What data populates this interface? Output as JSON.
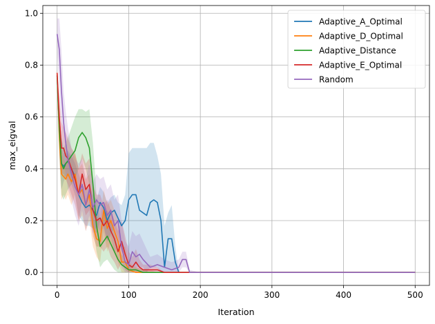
{
  "chart_data": {
    "type": "line",
    "title": "",
    "xlabel": "Iteration",
    "ylabel": "max_eigval",
    "xlim": [
      -20,
      520
    ],
    "ylim": [
      -0.05,
      1.03
    ],
    "xticks": [
      0,
      100,
      200,
      300,
      400,
      500
    ],
    "xtick_labels": [
      "0",
      "100",
      "200",
      "300",
      "400",
      "500"
    ],
    "yticks": [
      0.0,
      0.2,
      0.4,
      0.6,
      0.8,
      1.0
    ],
    "ytick_labels": [
      "0.0",
      "0.2",
      "0.4",
      "0.6",
      "0.8",
      "1.0"
    ],
    "grid": true,
    "legend_position": "top-right",
    "series": [
      {
        "name": "Adaptive_A_Optimal",
        "color": "#1f77b4",
        "x": [
          0,
          3,
          6,
          9,
          12,
          15,
          20,
          25,
          30,
          35,
          40,
          45,
          50,
          55,
          60,
          65,
          70,
          75,
          80,
          85,
          90,
          95,
          100,
          105,
          110,
          115,
          120,
          125,
          130,
          135,
          140,
          145,
          150,
          155,
          160,
          165,
          170,
          180,
          190,
          200,
          250,
          300,
          350,
          400,
          450,
          500
        ],
        "values": [
          0.76,
          0.55,
          0.42,
          0.41,
          0.42,
          0.43,
          0.4,
          0.37,
          0.3,
          0.27,
          0.25,
          0.26,
          0.24,
          0.22,
          0.27,
          0.25,
          0.2,
          0.23,
          0.24,
          0.21,
          0.18,
          0.2,
          0.28,
          0.3,
          0.3,
          0.24,
          0.23,
          0.22,
          0.27,
          0.28,
          0.27,
          0.2,
          0.02,
          0.13,
          0.13,
          0.04,
          0.0,
          0.0,
          0.0,
          0.0,
          0.0,
          0.0,
          0.0,
          0.0,
          0.0,
          0.0
        ],
        "upper": [
          0.77,
          0.62,
          0.52,
          0.46,
          0.46,
          0.47,
          0.45,
          0.42,
          0.38,
          0.34,
          0.32,
          0.33,
          0.3,
          0.28,
          0.33,
          0.31,
          0.27,
          0.29,
          0.3,
          0.27,
          0.26,
          0.3,
          0.46,
          0.48,
          0.48,
          0.48,
          0.48,
          0.48,
          0.5,
          0.5,
          0.45,
          0.38,
          0.18,
          0.23,
          0.26,
          0.1,
          0.0,
          0.0,
          0.0,
          0.0,
          0.0,
          0.0,
          0.0,
          0.0,
          0.0,
          0.0
        ],
        "lower": [
          0.75,
          0.45,
          0.32,
          0.35,
          0.37,
          0.38,
          0.34,
          0.3,
          0.22,
          0.2,
          0.18,
          0.18,
          0.17,
          0.15,
          0.2,
          0.18,
          0.12,
          0.15,
          0.17,
          0.13,
          0.08,
          0.06,
          0.02,
          0.02,
          0.02,
          0.02,
          0.02,
          0.0,
          0.02,
          0.02,
          0.02,
          0.0,
          0.0,
          0.0,
          0.0,
          0.0,
          0.0,
          0.0,
          0.0,
          0.0,
          0.0,
          0.0,
          0.0,
          0.0,
          0.0,
          0.0
        ]
      },
      {
        "name": "Adaptive_D_Optimal",
        "color": "#ff7f0e",
        "x": [
          0,
          3,
          6,
          9,
          12,
          15,
          20,
          25,
          30,
          35,
          40,
          45,
          50,
          55,
          60,
          65,
          70,
          75,
          80,
          85,
          90,
          95,
          100,
          110,
          120,
          130,
          140,
          150,
          160,
          170,
          180,
          200,
          250,
          300,
          350,
          400,
          450,
          500
        ],
        "values": [
          0.77,
          0.52,
          0.38,
          0.37,
          0.36,
          0.38,
          0.35,
          0.38,
          0.3,
          0.32,
          0.26,
          0.3,
          0.18,
          0.13,
          0.12,
          0.24,
          0.17,
          0.2,
          0.16,
          0.12,
          0.04,
          0.04,
          0.01,
          0.0,
          0.0,
          0.0,
          0.0,
          0.0,
          0.0,
          0.0,
          0.0,
          0.0,
          0.0,
          0.0,
          0.0,
          0.0,
          0.0,
          0.0
        ],
        "upper": [
          0.78,
          0.6,
          0.48,
          0.44,
          0.42,
          0.46,
          0.44,
          0.46,
          0.4,
          0.42,
          0.36,
          0.38,
          0.26,
          0.22,
          0.2,
          0.32,
          0.26,
          0.28,
          0.24,
          0.2,
          0.1,
          0.1,
          0.04,
          0.02,
          0.01,
          0.01,
          0.0,
          0.0,
          0.0,
          0.0,
          0.0,
          0.0,
          0.0,
          0.0,
          0.0,
          0.0,
          0.0,
          0.0
        ],
        "lower": [
          0.76,
          0.44,
          0.28,
          0.3,
          0.28,
          0.3,
          0.26,
          0.3,
          0.2,
          0.22,
          0.16,
          0.2,
          0.1,
          0.06,
          0.04,
          0.16,
          0.08,
          0.12,
          0.08,
          0.04,
          0.0,
          0.0,
          0.0,
          0.0,
          0.0,
          0.0,
          0.0,
          0.0,
          0.0,
          0.0,
          0.0,
          0.0,
          0.0,
          0.0,
          0.0,
          0.0,
          0.0,
          0.0
        ]
      },
      {
        "name": "Adaptive_Distance",
        "color": "#2ca02c",
        "x": [
          0,
          3,
          6,
          9,
          12,
          15,
          20,
          25,
          30,
          35,
          40,
          45,
          50,
          55,
          60,
          65,
          70,
          75,
          80,
          85,
          90,
          95,
          100,
          105,
          110,
          120,
          130,
          140,
          150,
          160,
          170,
          180,
          200,
          250,
          300,
          350,
          400,
          450,
          500
        ],
        "values": [
          0.76,
          0.55,
          0.42,
          0.4,
          0.42,
          0.43,
          0.45,
          0.47,
          0.52,
          0.54,
          0.52,
          0.48,
          0.34,
          0.18,
          0.1,
          0.12,
          0.14,
          0.11,
          0.08,
          0.05,
          0.03,
          0.02,
          0.01,
          0.01,
          0.01,
          0.0,
          0.0,
          0.0,
          0.0,
          0.0,
          0.0,
          0.0,
          0.0,
          0.0,
          0.0,
          0.0,
          0.0,
          0.0,
          0.0
        ],
        "upper": [
          0.77,
          0.62,
          0.52,
          0.48,
          0.5,
          0.52,
          0.56,
          0.6,
          0.63,
          0.63,
          0.62,
          0.63,
          0.5,
          0.3,
          0.2,
          0.22,
          0.24,
          0.2,
          0.16,
          0.1,
          0.07,
          0.05,
          0.03,
          0.02,
          0.02,
          0.01,
          0.0,
          0.0,
          0.0,
          0.0,
          0.0,
          0.0,
          0.0,
          0.0,
          0.0,
          0.0,
          0.0,
          0.0,
          0.0
        ],
        "lower": [
          0.75,
          0.46,
          0.3,
          0.28,
          0.3,
          0.32,
          0.34,
          0.36,
          0.4,
          0.44,
          0.4,
          0.34,
          0.18,
          0.08,
          0.02,
          0.04,
          0.05,
          0.03,
          0.01,
          0.0,
          0.0,
          0.0,
          0.0,
          0.0,
          0.0,
          0.0,
          0.0,
          0.0,
          0.0,
          0.0,
          0.0,
          0.0,
          0.0,
          0.0,
          0.0,
          0.0,
          0.0,
          0.0,
          0.0
        ]
      },
      {
        "name": "Adaptive_E_Optimal",
        "color": "#d62728",
        "x": [
          0,
          3,
          6,
          9,
          12,
          15,
          20,
          25,
          30,
          35,
          40,
          45,
          50,
          55,
          60,
          65,
          70,
          75,
          80,
          85,
          90,
          95,
          100,
          105,
          110,
          115,
          120,
          130,
          140,
          150,
          160,
          170,
          180,
          200,
          250,
          300,
          350,
          400,
          450,
          500
        ],
        "values": [
          0.77,
          0.6,
          0.48,
          0.48,
          0.45,
          0.44,
          0.4,
          0.36,
          0.3,
          0.38,
          0.32,
          0.34,
          0.24,
          0.2,
          0.21,
          0.18,
          0.2,
          0.16,
          0.13,
          0.08,
          0.12,
          0.07,
          0.03,
          0.02,
          0.04,
          0.02,
          0.01,
          0.01,
          0.01,
          0.0,
          0.0,
          0.0,
          0.0,
          0.0,
          0.0,
          0.0,
          0.0,
          0.0,
          0.0,
          0.0
        ],
        "upper": [
          0.78,
          0.68,
          0.58,
          0.56,
          0.54,
          0.52,
          0.48,
          0.46,
          0.4,
          0.46,
          0.42,
          0.44,
          0.34,
          0.3,
          0.3,
          0.26,
          0.28,
          0.24,
          0.2,
          0.16,
          0.2,
          0.14,
          0.08,
          0.06,
          0.09,
          0.05,
          0.03,
          0.03,
          0.02,
          0.0,
          0.0,
          0.0,
          0.0,
          0.0,
          0.0,
          0.0,
          0.0,
          0.0,
          0.0,
          0.0
        ],
        "lower": [
          0.76,
          0.5,
          0.38,
          0.38,
          0.36,
          0.34,
          0.3,
          0.26,
          0.2,
          0.28,
          0.22,
          0.24,
          0.14,
          0.1,
          0.1,
          0.08,
          0.1,
          0.06,
          0.04,
          0.01,
          0.04,
          0.01,
          0.0,
          0.0,
          0.0,
          0.0,
          0.0,
          0.0,
          0.0,
          0.0,
          0.0,
          0.0,
          0.0,
          0.0,
          0.0,
          0.0,
          0.0,
          0.0,
          0.0,
          0.0
        ]
      },
      {
        "name": "Random",
        "color": "#9467bd",
        "x": [
          0,
          3,
          6,
          9,
          12,
          15,
          20,
          25,
          30,
          35,
          40,
          45,
          50,
          55,
          60,
          65,
          70,
          75,
          80,
          85,
          90,
          95,
          100,
          105,
          110,
          115,
          120,
          130,
          140,
          150,
          160,
          170,
          175,
          180,
          185,
          200,
          250,
          300,
          350,
          400,
          450,
          500
        ],
        "values": [
          0.92,
          0.86,
          0.7,
          0.58,
          0.5,
          0.44,
          0.38,
          0.33,
          0.3,
          0.34,
          0.26,
          0.32,
          0.25,
          0.28,
          0.26,
          0.27,
          0.22,
          0.24,
          0.18,
          0.2,
          0.1,
          0.04,
          0.03,
          0.08,
          0.06,
          0.07,
          0.05,
          0.02,
          0.03,
          0.02,
          0.01,
          0.02,
          0.05,
          0.05,
          0.0,
          0.0,
          0.0,
          0.0,
          0.0,
          0.0,
          0.0,
          0.0
        ],
        "upper": [
          0.98,
          0.98,
          0.86,
          0.7,
          0.62,
          0.56,
          0.48,
          0.44,
          0.42,
          0.44,
          0.36,
          0.42,
          0.35,
          0.38,
          0.36,
          0.37,
          0.32,
          0.34,
          0.28,
          0.3,
          0.2,
          0.12,
          0.1,
          0.16,
          0.14,
          0.15,
          0.12,
          0.06,
          0.07,
          0.05,
          0.04,
          0.05,
          0.08,
          0.08,
          0.01,
          0.0,
          0.0,
          0.0,
          0.0,
          0.0,
          0.0,
          0.0
        ],
        "lower": [
          0.86,
          0.72,
          0.54,
          0.44,
          0.38,
          0.32,
          0.28,
          0.22,
          0.18,
          0.24,
          0.16,
          0.22,
          0.15,
          0.18,
          0.16,
          0.17,
          0.12,
          0.14,
          0.08,
          0.1,
          0.02,
          0.0,
          0.0,
          0.02,
          0.0,
          0.01,
          0.0,
          0.0,
          0.0,
          0.0,
          0.0,
          0.0,
          0.02,
          0.02,
          0.0,
          0.0,
          0.0,
          0.0,
          0.0,
          0.0,
          0.0,
          0.0
        ]
      }
    ]
  }
}
